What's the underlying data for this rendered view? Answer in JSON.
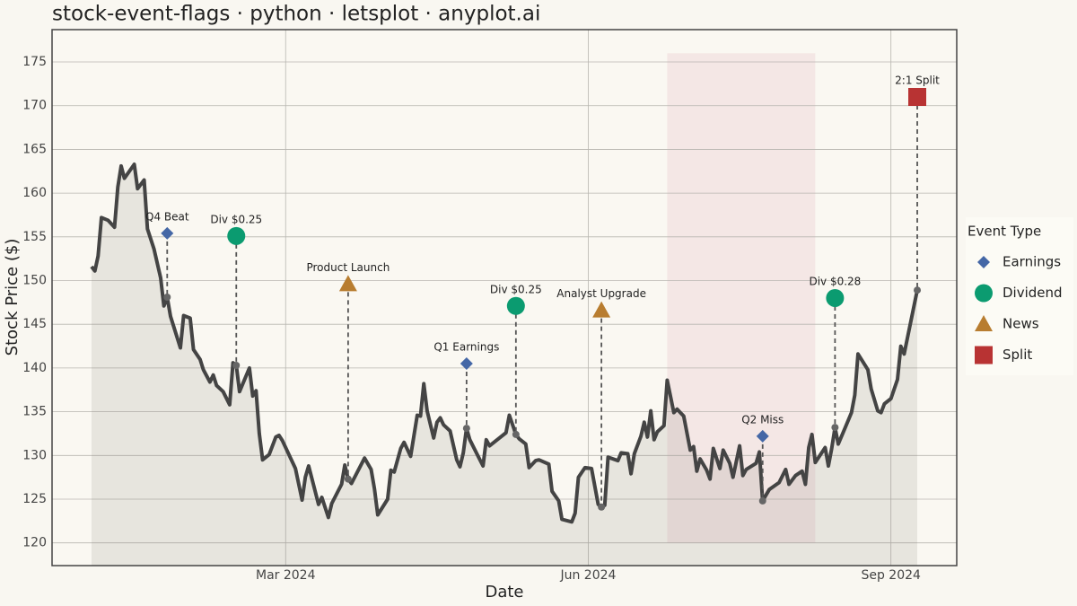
{
  "chart_data": {
    "type": "line",
    "title": "stock-event-flags · python · letsplot · anyplot.ai",
    "xlabel": "Date",
    "ylabel": "Stock Price ($)",
    "xlim": [
      "2023-12-21",
      "2024-09-21"
    ],
    "xticks": [
      {
        "value": "2024-03-01",
        "label": "Mar 2024"
      },
      {
        "value": "2024-06-01",
        "label": "Jun 2024"
      },
      {
        "value": "2024-09-01",
        "label": "Sep 2024"
      }
    ],
    "ylim": [
      117.4,
      178.7
    ],
    "yticks": [
      120,
      125,
      130,
      135,
      140,
      145,
      150,
      155,
      160,
      165,
      170,
      175
    ],
    "grid": true,
    "line_color": "#444444",
    "shaded_region": {
      "start": "2024-06-25",
      "end": "2024-08-09",
      "ymin": 120,
      "ymax": 176,
      "color": "#f0dcdc"
    },
    "x": [
      "2024-01-02",
      "2024-01-03",
      "2024-01-04",
      "2024-01-05",
      "2024-01-07",
      "2024-01-09",
      "2024-01-10",
      "2024-01-11",
      "2024-01-12",
      "2024-01-15",
      "2024-01-16",
      "2024-01-18",
      "2024-01-19",
      "2024-01-21",
      "2024-01-23",
      "2024-01-24",
      "2024-01-25",
      "2024-01-26",
      "2024-01-29",
      "2024-01-30",
      "2024-02-01",
      "2024-02-02",
      "2024-02-04",
      "2024-02-05",
      "2024-02-07",
      "2024-02-08",
      "2024-02-09",
      "2024-02-11",
      "2024-02-13",
      "2024-02-14",
      "2024-02-15",
      "2024-02-16",
      "2024-02-19",
      "2024-02-20",
      "2024-02-21",
      "2024-02-22",
      "2024-02-23",
      "2024-02-25",
      "2024-02-27",
      "2024-02-28",
      "2024-02-29",
      "2024-03-04",
      "2024-03-05",
      "2024-03-06",
      "2024-03-07",
      "2024-03-08",
      "2024-03-11",
      "2024-03-12",
      "2024-03-14",
      "2024-03-15",
      "2024-03-18",
      "2024-03-19",
      "2024-03-20",
      "2024-03-21",
      "2024-03-25",
      "2024-03-27",
      "2024-03-28",
      "2024-03-29",
      "2024-04-01",
      "2024-04-02",
      "2024-04-03",
      "2024-04-05",
      "2024-04-06",
      "2024-04-08",
      "2024-04-10",
      "2024-04-11",
      "2024-04-12",
      "2024-04-13",
      "2024-04-15",
      "2024-04-16",
      "2024-04-17",
      "2024-04-18",
      "2024-04-20",
      "2024-04-22",
      "2024-04-23",
      "2024-04-24",
      "2024-04-25",
      "2024-04-26",
      "2024-04-28",
      "2024-04-30",
      "2024-05-01",
      "2024-05-02",
      "2024-05-05",
      "2024-05-07",
      "2024-05-08",
      "2024-05-10",
      "2024-05-11",
      "2024-05-13",
      "2024-05-14",
      "2024-05-16",
      "2024-05-17",
      "2024-05-20",
      "2024-05-21",
      "2024-05-23",
      "2024-05-24",
      "2024-05-27",
      "2024-05-28",
      "2024-05-29",
      "2024-05-31",
      "2024-06-02",
      "2024-06-04",
      "2024-06-05",
      "2024-06-06",
      "2024-06-07",
      "2024-06-10",
      "2024-06-11",
      "2024-06-13",
      "2024-06-14",
      "2024-06-15",
      "2024-06-17",
      "2024-06-18",
      "2024-06-19",
      "2024-06-20",
      "2024-06-21",
      "2024-06-22",
      "2024-06-24",
      "2024-06-25",
      "2024-06-27",
      "2024-06-28",
      "2024-06-30",
      "2024-07-02",
      "2024-07-03",
      "2024-07-04",
      "2024-07-05",
      "2024-07-07",
      "2024-07-08",
      "2024-07-09",
      "2024-07-11",
      "2024-07-12",
      "2024-07-14",
      "2024-07-15",
      "2024-07-17",
      "2024-07-18",
      "2024-07-19",
      "2024-07-22",
      "2024-07-23",
      "2024-07-24",
      "2024-07-26",
      "2024-07-29",
      "2024-07-31",
      "2024-08-01",
      "2024-08-03",
      "2024-08-05",
      "2024-08-06",
      "2024-08-07",
      "2024-08-08",
      "2024-08-09",
      "2024-08-12",
      "2024-08-13",
      "2024-08-14",
      "2024-08-15",
      "2024-08-16",
      "2024-08-18",
      "2024-08-20",
      "2024-08-21",
      "2024-08-22",
      "2024-08-25",
      "2024-08-26",
      "2024-08-28",
      "2024-08-29",
      "2024-08-30",
      "2024-09-01",
      "2024-09-03",
      "2024-09-04",
      "2024-09-05",
      "2024-09-09"
    ],
    "values": [
      151.6,
      151.1,
      152.8,
      157.2,
      156.9,
      156.1,
      160.7,
      163.1,
      161.7,
      163.3,
      160.5,
      161.5,
      155.9,
      153.6,
      150.3,
      147.1,
      148.1,
      145.9,
      142.3,
      146.0,
      145.7,
      142.1,
      141.0,
      139.8,
      138.4,
      139.2,
      138.0,
      137.3,
      135.8,
      140.6,
      140.3,
      137.3,
      140.0,
      136.8,
      137.4,
      132.5,
      129.5,
      130.1,
      132.1,
      132.3,
      131.7,
      128.5,
      126.7,
      124.9,
      127.5,
      128.8,
      124.4,
      125.2,
      122.9,
      124.5,
      126.7,
      128.9,
      127.3,
      126.8,
      129.7,
      128.4,
      126.2,
      123.2,
      125.0,
      128.3,
      128.1,
      130.8,
      131.5,
      129.9,
      134.6,
      134.5,
      138.2,
      135.1,
      132.0,
      133.8,
      134.3,
      133.5,
      132.8,
      129.5,
      128.7,
      130.3,
      133.1,
      131.8,
      130.3,
      128.8,
      131.8,
      131.1,
      132.0,
      132.6,
      134.6,
      132.4,
      131.9,
      131.3,
      128.6,
      129.4,
      129.5,
      129.0,
      125.9,
      124.8,
      122.7,
      122.4,
      123.4,
      127.5,
      128.6,
      128.5,
      124.4,
      124.1,
      124.3,
      129.8,
      129.4,
      130.3,
      130.2,
      127.9,
      130.2,
      132.2,
      133.8,
      132.1,
      135.1,
      131.8,
      132.7,
      133.4,
      138.6,
      134.9,
      135.3,
      134.5,
      130.6,
      131.0,
      128.2,
      129.6,
      128.3,
      127.3,
      130.8,
      128.5,
      130.6,
      129.1,
      127.5,
      131.1,
      127.7,
      128.4,
      129.1,
      130.4,
      124.8,
      126.1,
      126.9,
      128.4,
      126.7,
      127.7,
      128.2,
      126.7,
      130.9,
      132.4,
      129.2,
      130.9,
      128.8,
      130.8,
      133.2,
      131.3,
      133.1,
      134.9,
      136.9,
      141.6,
      139.8,
      137.6,
      135.1,
      134.9,
      135.9,
      136.5,
      138.7,
      142.5,
      141.6,
      148.9
    ],
    "legend_title": "Event Type",
    "event_types": [
      {
        "name": "Earnings",
        "color": "#4467a6",
        "shape": "diamond"
      },
      {
        "name": "Dividend",
        "color": "#0b9b70",
        "shape": "circle"
      },
      {
        "name": "News",
        "color": "#b87d30",
        "shape": "triangle"
      },
      {
        "name": "Split",
        "color": "#b83333",
        "shape": "square"
      }
    ],
    "events": [
      {
        "date": "2024-01-25",
        "price": 148.1,
        "flag": 155.4,
        "label": "Q4 Beat",
        "type": "Earnings"
      },
      {
        "date": "2024-02-15",
        "price": 140.3,
        "flag": 155.1,
        "label": "Div $0.25",
        "type": "Dividend"
      },
      {
        "date": "2024-03-20",
        "price": 127.3,
        "flag": 149.6,
        "label": "Product Launch",
        "type": "News"
      },
      {
        "date": "2024-04-25",
        "price": 133.1,
        "flag": 140.5,
        "label": "Q1 Earnings",
        "type": "Earnings"
      },
      {
        "date": "2024-05-10",
        "price": 132.4,
        "flag": 147.1,
        "label": "Div $0.25",
        "type": "Dividend"
      },
      {
        "date": "2024-06-05",
        "price": 124.1,
        "flag": 146.6,
        "label": "Analyst Upgrade",
        "type": "News"
      },
      {
        "date": "2024-07-24",
        "price": 124.8,
        "flag": 132.2,
        "label": "Q2 Miss",
        "type": "Earnings"
      },
      {
        "date": "2024-08-15",
        "price": 133.2,
        "flag": 148.0,
        "label": "Div $0.28",
        "type": "Dividend"
      },
      {
        "date": "2024-09-09",
        "price": 148.9,
        "flag": 171.0,
        "label": "2:1 Split",
        "type": "Split"
      }
    ]
  }
}
